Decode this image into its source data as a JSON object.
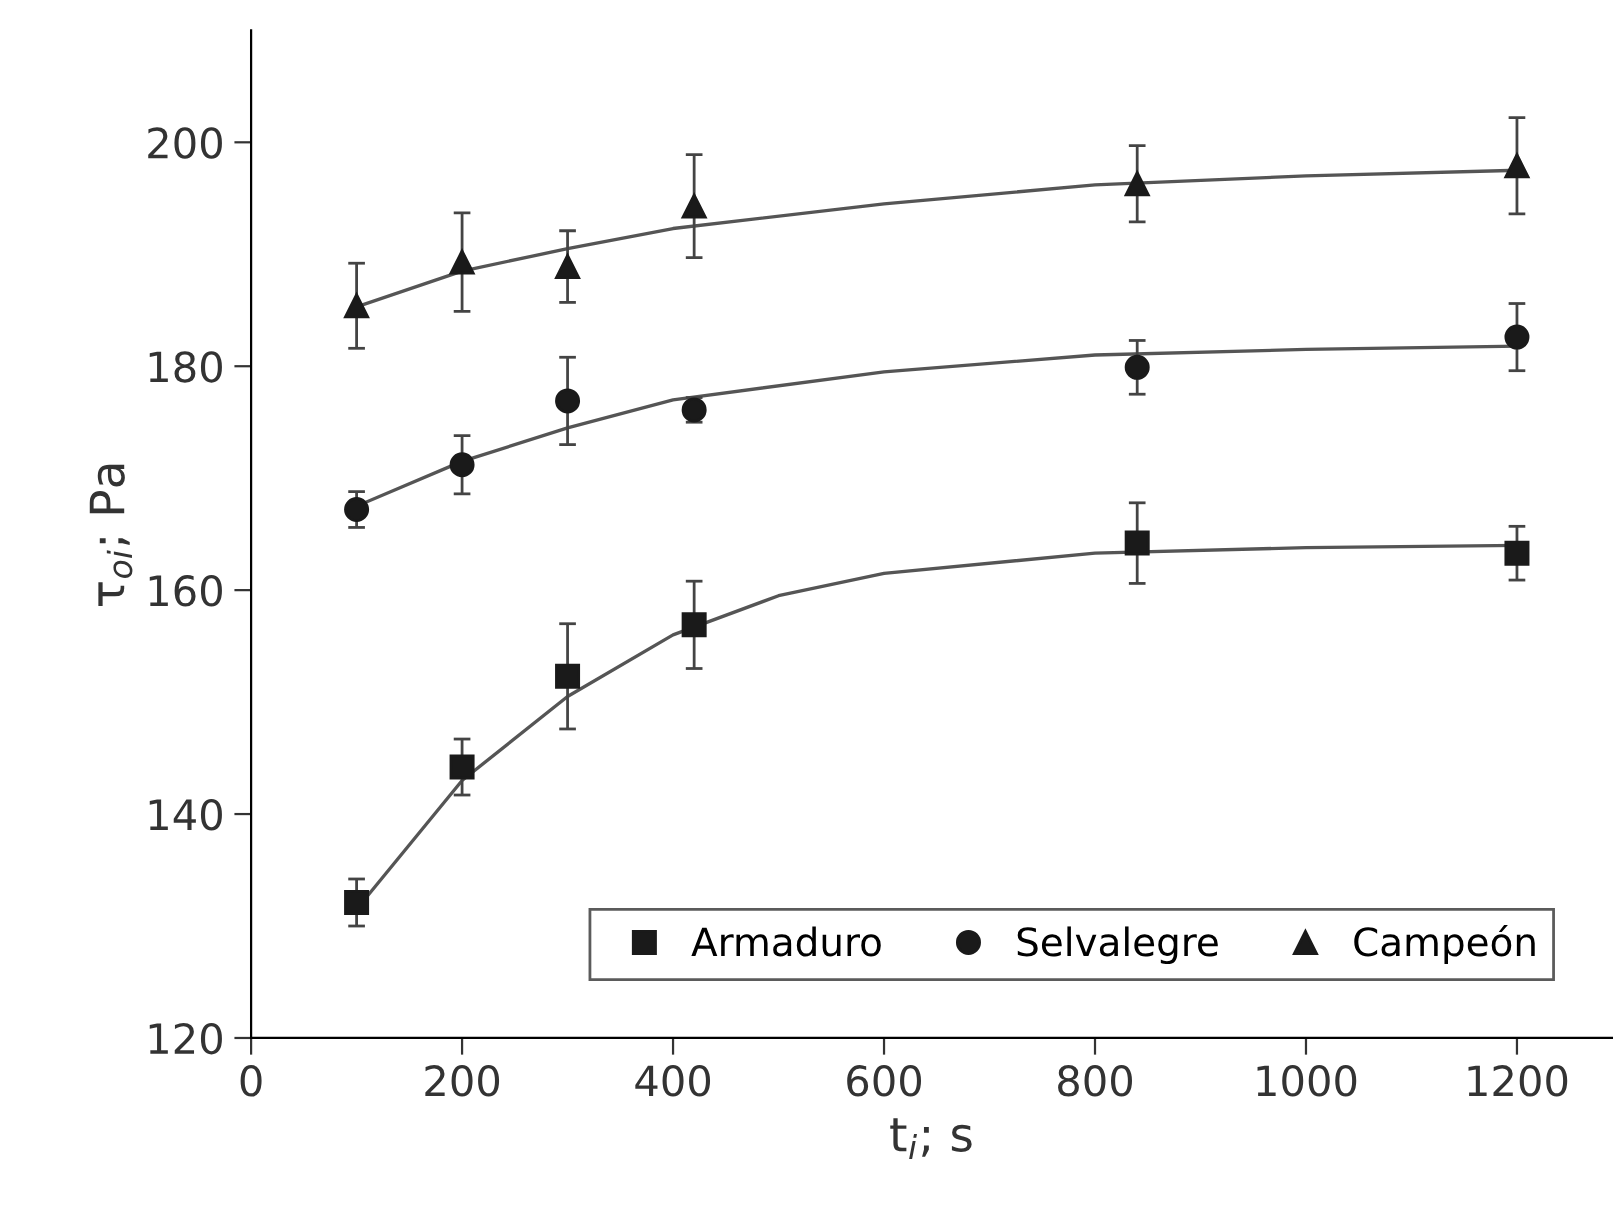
{
  "chart_data": {
    "type": "scatter",
    "xlabel": "t$_{i}$; s",
    "ylabel": "τ$_{oi}$; Pa",
    "xlim": [
      0,
      1290
    ],
    "xticks": [
      0,
      200,
      400,
      600,
      800,
      1000,
      1200
    ],
    "ylim": [
      120,
      210
    ],
    "yticks": [
      120,
      140,
      160,
      180,
      200
    ],
    "grid": false,
    "legend": "bottom right",
    "series": [
      {
        "name": "Armaduro",
        "color": "#1a1a1a",
        "marker": "square",
        "x": [
          100,
          200,
          300,
          420,
          840,
          1200
        ],
        "values": [
          132.1,
          144.2,
          152.3,
          156.9,
          164.2,
          163.3
        ],
        "errors": [
          2.1,
          2.5,
          4.7,
          3.9,
          3.6,
          2.4
        ]
      },
      {
        "name": "Selvalegre",
        "color": "#1a1a1a",
        "marker": "circle",
        "x": [
          100,
          200,
          300,
          420,
          840,
          1200
        ],
        "values": [
          167.2,
          171.2,
          176.9,
          176.1,
          179.9,
          182.6
        ],
        "errors": [
          1.6,
          2.6,
          3.9,
          1.1,
          2.4,
          3.0
        ]
      },
      {
        "name": "Campeón",
        "color": "#1a1a1a",
        "marker": "triangle",
        "x": [
          100,
          200,
          300,
          420,
          840,
          1200
        ],
        "values": [
          185.4,
          189.3,
          188.9,
          194.3,
          196.3,
          197.9
        ],
        "errors": [
          3.8,
          4.4,
          3.2,
          4.6,
          3.4,
          4.3
        ]
      },
      {
        "type": "line",
        "color": "#555555",
        "line_style": "solid",
        "x": [
          100,
          200,
          300,
          400,
          500,
          600,
          800,
          1000,
          1200
        ],
        "values": [
          131.5,
          143,
          150.5,
          156,
          159.5,
          161.5,
          163.3,
          163.8,
          164
        ]
      },
      {
        "type": "line",
        "color": "#555555",
        "line_style": "solid",
        "x": [
          100,
          200,
          300,
          400,
          600,
          800,
          1000,
          1200
        ],
        "values": [
          167.5,
          171.5,
          174.5,
          177,
          179.5,
          181,
          181.5,
          181.8
        ]
      },
      {
        "type": "line",
        "color": "#555555",
        "line_style": "solid",
        "x": [
          100,
          200,
          300,
          400,
          600,
          800,
          1000,
          1200
        ],
        "values": [
          185.3,
          188.5,
          190.5,
          192.3,
          194.5,
          196.2,
          197,
          197.5
        ]
      }
    ]
  }
}
